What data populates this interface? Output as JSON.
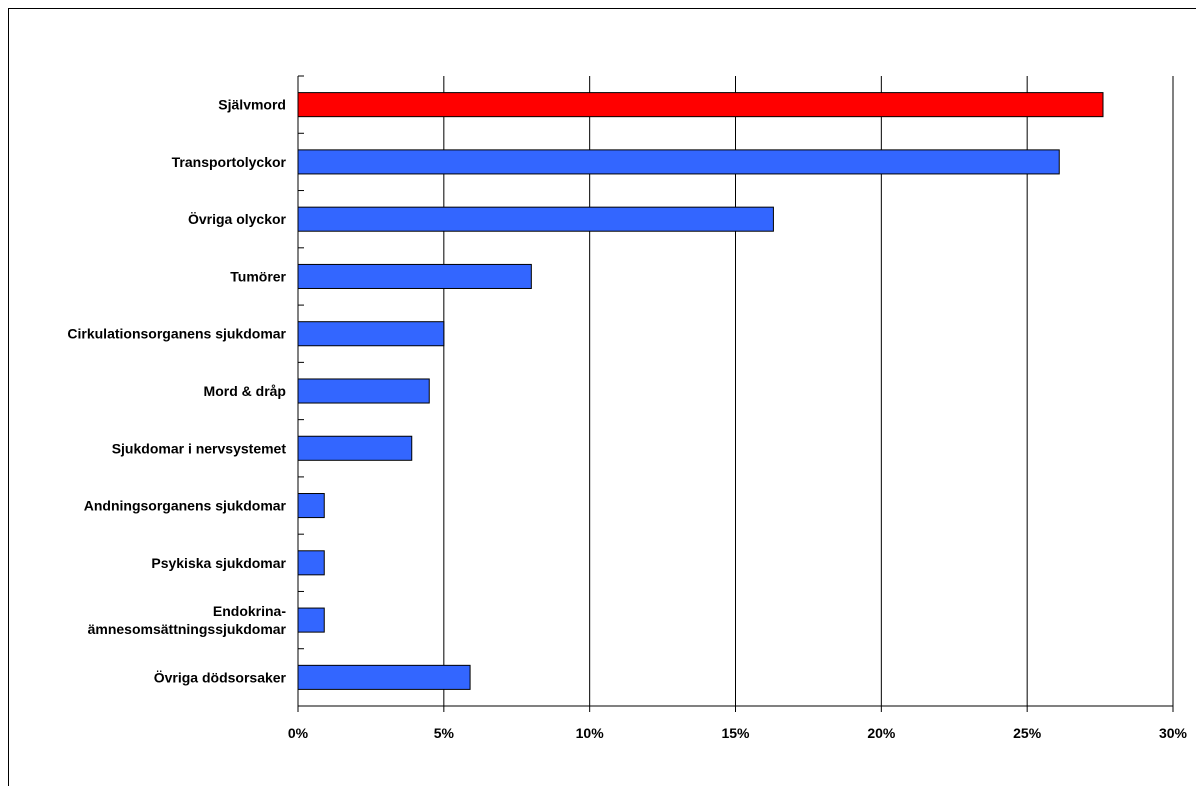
{
  "chart_data": {
    "type": "bar",
    "orientation": "horizontal",
    "categories": [
      "Självmord",
      "Transportolyckor",
      "Övriga olyckor",
      "Tumörer",
      "Cirkulationsorganens sjukdomar",
      "Mord & dråp",
      "Sjukdomar i nervsystemet",
      "Andningsorganens sjukdomar",
      "Psykiska sjukdomar",
      "Endokrina- ämnesomsättningssjukdomar",
      "Övriga dödsorsaker"
    ],
    "category_label_lines": [
      [
        "Självmord"
      ],
      [
        "Transportolyckor"
      ],
      [
        "Övriga olyckor"
      ],
      [
        "Tumörer"
      ],
      [
        "Cirkulationsorganens sjukdomar"
      ],
      [
        "Mord & dråp"
      ],
      [
        "Sjukdomar i nervsystemet"
      ],
      [
        "Andningsorganens sjukdomar"
      ],
      [
        "Psykiska sjukdomar"
      ],
      [
        "Endokrina-",
        "ämnesomsättningssjukdomar"
      ],
      [
        "Övriga dödsorsaker"
      ]
    ],
    "values": [
      27.6,
      26.1,
      16.3,
      8.0,
      5.0,
      4.5,
      3.9,
      0.9,
      0.9,
      0.9,
      5.9
    ],
    "bar_colors": [
      "#ff0000",
      "#3366ff",
      "#3366ff",
      "#3366ff",
      "#3366ff",
      "#3366ff",
      "#3366ff",
      "#3366ff",
      "#3366ff",
      "#3366ff",
      "#3366ff"
    ],
    "x_ticks": [
      0,
      5,
      10,
      15,
      20,
      25,
      30
    ],
    "x_tick_labels": [
      "0%",
      "5%",
      "10%",
      "15%",
      "20%",
      "25%",
      "30%"
    ],
    "xlim": [
      0,
      30
    ],
    "unit": "%",
    "grid": "vertical",
    "legend": "none"
  }
}
